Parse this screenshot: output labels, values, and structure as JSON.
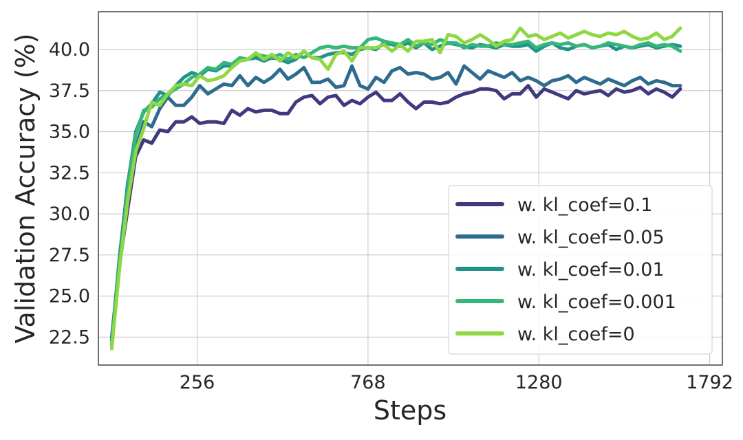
{
  "chart_data": {
    "type": "line",
    "title": "",
    "xlabel": "Steps",
    "ylabel": "Validation Accuracy (%)",
    "xlim": [
      -40,
      1830
    ],
    "ylim": [
      20.8,
      42.3
    ],
    "xticks": [
      256,
      768,
      1280,
      1792
    ],
    "xtick_labels": [
      "256",
      "768",
      "1280",
      "1792"
    ],
    "yticks": [
      22.5,
      25.0,
      27.5,
      30.0,
      32.5,
      35.0,
      37.5,
      40.0
    ],
    "ytick_labels": [
      "22.5",
      "25.0",
      "27.5",
      "30.0",
      "32.5",
      "35.0",
      "37.5",
      "40.0"
    ],
    "grid": true,
    "legend_position": "lower-right",
    "x": [
      0,
      24,
      48,
      72,
      96,
      120,
      144,
      168,
      192,
      216,
      240,
      264,
      288,
      312,
      336,
      360,
      384,
      408,
      432,
      456,
      480,
      504,
      528,
      552,
      576,
      600,
      624,
      648,
      672,
      696,
      720,
      744,
      768,
      792,
      816,
      840,
      864,
      888,
      912,
      936,
      960,
      984,
      1008,
      1032,
      1056,
      1080,
      1104,
      1128,
      1152,
      1176,
      1200,
      1224,
      1248,
      1272,
      1296,
      1320,
      1344,
      1368,
      1392,
      1416,
      1440,
      1464,
      1488,
      1512,
      1536,
      1560,
      1584,
      1608,
      1632,
      1656,
      1680,
      1704
    ],
    "series": [
      {
        "name": "w. kl_coef=0.1",
        "color": "#3f3a7f",
        "values": [
          22.5,
          27.0,
          30.3,
          33.5,
          34.5,
          34.3,
          35.1,
          35.0,
          35.6,
          35.6,
          35.9,
          35.5,
          35.6,
          35.6,
          35.5,
          36.3,
          36.0,
          36.4,
          36.2,
          36.3,
          36.3,
          36.1,
          36.1,
          36.8,
          37.1,
          37.2,
          36.7,
          37.1,
          37.2,
          36.6,
          36.9,
          36.7,
          37.1,
          37.4,
          36.9,
          36.9,
          37.3,
          36.8,
          36.4,
          36.8,
          36.8,
          36.7,
          36.8,
          37.1,
          37.3,
          37.4,
          37.6,
          37.6,
          37.5,
          37.0,
          37.3,
          37.3,
          37.8,
          37.1,
          37.6,
          37.4,
          37.2,
          37.0,
          37.5,
          37.3,
          37.4,
          37.5,
          37.2,
          37.6,
          37.4,
          37.5,
          37.7,
          37.3,
          37.6,
          37.4,
          37.1,
          37.6
        ]
      },
      {
        "name": "w. kl_coef=0.05",
        "color": "#2e6b8e",
        "values": [
          22.3,
          27.2,
          31.9,
          34.0,
          35.6,
          35.3,
          36.4,
          37.1,
          36.6,
          36.6,
          37.1,
          37.8,
          37.3,
          37.6,
          37.9,
          37.8,
          38.4,
          37.8,
          38.3,
          38.0,
          38.3,
          38.8,
          38.2,
          38.5,
          38.9,
          38.0,
          38.0,
          38.2,
          37.7,
          37.8,
          39.0,
          37.8,
          37.6,
          38.3,
          38.0,
          38.7,
          38.9,
          38.5,
          38.6,
          38.5,
          38.2,
          38.3,
          38.6,
          37.9,
          39.0,
          38.6,
          38.2,
          38.7,
          38.5,
          38.3,
          38.6,
          38.1,
          38.3,
          38.1,
          37.8,
          38.1,
          38.2,
          38.4,
          38.0,
          38.3,
          38.1,
          37.9,
          38.2,
          38.0,
          37.8,
          38.1,
          38.3,
          37.9,
          38.1,
          38.0,
          37.8,
          37.8
        ]
      },
      {
        "name": "w. kl_coef=0.01",
        "color": "#21918c",
        "values": [
          22.3,
          27.5,
          31.8,
          35.0,
          36.2,
          36.7,
          37.4,
          37.2,
          37.8,
          38.3,
          38.6,
          38.4,
          38.8,
          38.7,
          39.0,
          39.0,
          39.3,
          39.4,
          39.5,
          39.3,
          39.5,
          39.4,
          39.2,
          39.4,
          39.9,
          39.5,
          39.5,
          39.7,
          39.8,
          39.8,
          39.7,
          40.0,
          40.1,
          40.0,
          40.4,
          40.3,
          40.2,
          40.4,
          40.1,
          40.4,
          40.0,
          40.2,
          40.4,
          40.3,
          40.2,
          40.1,
          40.3,
          40.2,
          40.1,
          40.3,
          40.2,
          40.2,
          40.3,
          39.9,
          40.2,
          40.4,
          40.1,
          40.0,
          40.2,
          40.3,
          40.1,
          40.2,
          40.3,
          40.0,
          40.2,
          40.1,
          40.2,
          40.3,
          40.1,
          40.2,
          40.3,
          40.2
        ]
      },
      {
        "name": "w. kl_coef=0.001",
        "color": "#35b779",
        "values": [
          22.0,
          27.0,
          31.5,
          34.8,
          36.3,
          36.5,
          37.0,
          37.3,
          37.6,
          37.9,
          38.3,
          38.5,
          38.9,
          38.8,
          39.2,
          39.1,
          39.5,
          39.4,
          39.7,
          39.6,
          39.5,
          39.7,
          39.4,
          39.7,
          39.5,
          39.8,
          40.1,
          40.2,
          40.1,
          40.2,
          40.1,
          40.1,
          40.6,
          40.7,
          40.5,
          40.4,
          40.3,
          40.6,
          40.2,
          40.4,
          40.3,
          40.6,
          40.4,
          40.4,
          40.1,
          40.3,
          40.2,
          40.2,
          40.4,
          40.3,
          40.3,
          40.4,
          40.5,
          40.1,
          40.3,
          40.4,
          40.3,
          40.4,
          40.2,
          40.3,
          40.1,
          40.2,
          40.4,
          40.3,
          40.2,
          40.1,
          40.3,
          40.4,
          40.2,
          40.3,
          40.2,
          39.9
        ]
      },
      {
        "name": "w. kl_coef=0",
        "color": "#8fd744",
        "values": [
          21.8,
          26.8,
          30.8,
          33.8,
          35.2,
          36.8,
          36.6,
          37.3,
          37.8,
          37.9,
          37.8,
          38.4,
          38.1,
          38.2,
          38.4,
          38.9,
          39.3,
          39.4,
          39.8,
          39.4,
          39.7,
          39.3,
          39.8,
          39.5,
          39.9,
          39.5,
          39.4,
          38.8,
          39.7,
          39.9,
          39.3,
          40.1,
          40.1,
          40.1,
          40.3,
          39.9,
          40.3,
          39.9,
          40.5,
          40.5,
          40.6,
          39.8,
          40.9,
          40.8,
          40.4,
          40.6,
          40.9,
          40.6,
          40.2,
          40.5,
          40.6,
          41.3,
          40.8,
          40.9,
          40.6,
          40.8,
          41.0,
          40.7,
          40.9,
          41.1,
          40.9,
          40.8,
          41.0,
          40.9,
          41.1,
          40.8,
          40.6,
          40.7,
          41.0,
          40.6,
          40.8,
          41.3
        ]
      }
    ]
  }
}
